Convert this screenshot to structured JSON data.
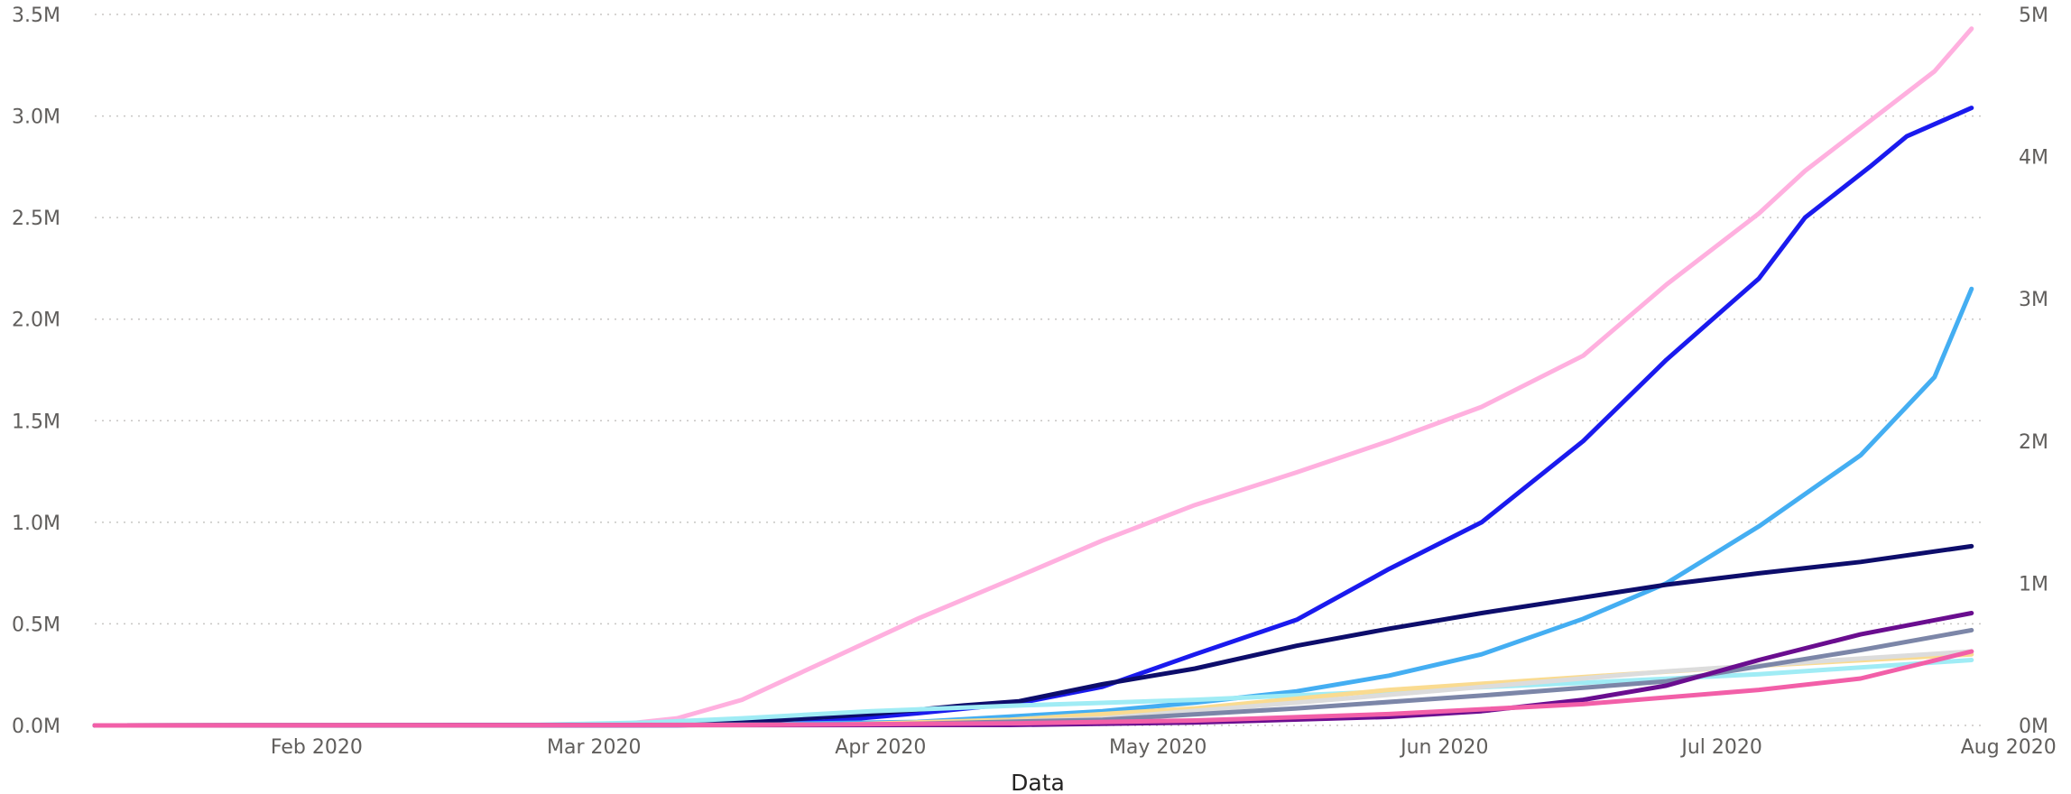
{
  "chart_data": {
    "type": "line",
    "xlabel": "Data",
    "grid": true,
    "x_tick_labels": [
      "Feb 2020",
      "Mar 2020",
      "Apr 2020",
      "May 2020",
      "Jun 2020",
      "Jul 2020",
      "Aug 2020"
    ],
    "y_left_ticks": [
      "0.0M",
      "0.5M",
      "1.0M",
      "1.5M",
      "2.0M",
      "2.5M",
      "3.0M",
      "3.5M"
    ],
    "y_left_range": [
      0,
      3500000
    ],
    "y_right_ticks": [
      "0M",
      "1M",
      "2M",
      "3M",
      "4M",
      "5M"
    ],
    "y_right_range": [
      0,
      5000000
    ],
    "x_range": [
      "2020-01-22",
      "2020-08-13"
    ],
    "series": [
      {
        "axis": "right",
        "color": "#ffb0df",
        "points": [
          [
            "2020-01-22",
            0
          ],
          [
            "2020-03-10",
            1000
          ],
          [
            "2020-03-20",
            15000
          ],
          [
            "2020-03-25",
            50000
          ],
          [
            "2020-04-01",
            180000
          ],
          [
            "2020-04-10",
            450000
          ],
          [
            "2020-04-20",
            750000
          ],
          [
            "2020-05-01",
            1050000
          ],
          [
            "2020-05-10",
            1300000
          ],
          [
            "2020-05-20",
            1550000
          ],
          [
            "2020-05-31",
            1780000
          ],
          [
            "2020-06-10",
            2000000
          ],
          [
            "2020-06-20",
            2240000
          ],
          [
            "2020-07-01",
            2600000
          ],
          [
            "2020-07-10",
            3100000
          ],
          [
            "2020-07-20",
            3600000
          ],
          [
            "2020-07-25",
            3900000
          ],
          [
            "2020-08-01",
            4250000
          ],
          [
            "2020-08-08",
            4600000
          ],
          [
            "2020-08-12",
            4900000
          ]
        ]
      },
      {
        "axis": "left",
        "color": "#1a1aee",
        "points": [
          [
            "2020-01-22",
            0
          ],
          [
            "2020-03-25",
            1000
          ],
          [
            "2020-04-10",
            20000
          ],
          [
            "2020-04-20",
            60000
          ],
          [
            "2020-05-01",
            110000
          ],
          [
            "2020-05-10",
            190000
          ],
          [
            "2020-05-20",
            350000
          ],
          [
            "2020-05-31",
            520000
          ],
          [
            "2020-06-10",
            770000
          ],
          [
            "2020-06-20",
            1000000
          ],
          [
            "2020-07-01",
            1400000
          ],
          [
            "2020-07-10",
            1800000
          ],
          [
            "2020-07-20",
            2200000
          ],
          [
            "2020-07-25",
            2500000
          ],
          [
            "2020-08-01",
            2750000
          ],
          [
            "2020-08-05",
            2900000
          ],
          [
            "2020-08-12",
            3040000
          ]
        ]
      },
      {
        "axis": "right",
        "color": "#44aef2",
        "points": [
          [
            "2020-01-22",
            0
          ],
          [
            "2020-03-25",
            1000
          ],
          [
            "2020-04-20",
            25000
          ],
          [
            "2020-05-10",
            100000
          ],
          [
            "2020-05-20",
            160000
          ],
          [
            "2020-05-31",
            240000
          ],
          [
            "2020-06-10",
            350000
          ],
          [
            "2020-06-20",
            500000
          ],
          [
            "2020-07-01",
            750000
          ],
          [
            "2020-07-10",
            1000000
          ],
          [
            "2020-07-20",
            1400000
          ],
          [
            "2020-07-31",
            1900000
          ],
          [
            "2020-08-08",
            2450000
          ],
          [
            "2020-08-12",
            3070000
          ]
        ]
      },
      {
        "axis": "right",
        "color": "#0d0d6b",
        "points": [
          [
            "2020-01-22",
            0
          ],
          [
            "2020-03-20",
            3000
          ],
          [
            "2020-04-01",
            20000
          ],
          [
            "2020-04-15",
            80000
          ],
          [
            "2020-04-25",
            140000
          ],
          [
            "2020-05-01",
            170000
          ],
          [
            "2020-05-10",
            290000
          ],
          [
            "2020-05-20",
            400000
          ],
          [
            "2020-05-31",
            560000
          ],
          [
            "2020-06-10",
            680000
          ],
          [
            "2020-06-20",
            790000
          ],
          [
            "2020-07-01",
            900000
          ],
          [
            "2020-07-10",
            990000
          ],
          [
            "2020-07-20",
            1070000
          ],
          [
            "2020-07-31",
            1150000
          ],
          [
            "2020-08-12",
            1260000
          ]
        ]
      },
      {
        "axis": "right",
        "color": "#a0ecf5",
        "points": [
          [
            "2020-01-22",
            0
          ],
          [
            "2020-03-10",
            5000
          ],
          [
            "2020-03-22",
            20000
          ],
          [
            "2020-04-01",
            50000
          ],
          [
            "2020-04-15",
            100000
          ],
          [
            "2020-05-01",
            140000
          ],
          [
            "2020-05-20",
            180000
          ],
          [
            "2020-06-10",
            240000
          ],
          [
            "2020-07-01",
            300000
          ],
          [
            "2020-07-20",
            360000
          ],
          [
            "2020-08-12",
            460000
          ]
        ]
      },
      {
        "axis": "right",
        "color": "#fadb90",
        "points": [
          [
            "2020-01-22",
            0
          ],
          [
            "2020-04-10",
            3000
          ],
          [
            "2020-04-30",
            40000
          ],
          [
            "2020-05-20",
            120000
          ],
          [
            "2020-06-10",
            250000
          ],
          [
            "2020-07-01",
            340000
          ],
          [
            "2020-07-20",
            420000
          ],
          [
            "2020-08-12",
            500000
          ]
        ]
      },
      {
        "axis": "right",
        "color": "#dcdcdc",
        "points": [
          [
            "2020-01-22",
            0
          ],
          [
            "2020-04-20",
            5000
          ],
          [
            "2020-05-10",
            50000
          ],
          [
            "2020-05-31",
            160000
          ],
          [
            "2020-06-20",
            270000
          ],
          [
            "2020-07-10",
            380000
          ],
          [
            "2020-07-31",
            470000
          ],
          [
            "2020-08-12",
            520000
          ]
        ]
      },
      {
        "axis": "right",
        "color": "#7c86a8",
        "points": [
          [
            "2020-01-22",
            0
          ],
          [
            "2020-04-15",
            5000
          ],
          [
            "2020-05-10",
            40000
          ],
          [
            "2020-05-31",
            120000
          ],
          [
            "2020-06-20",
            210000
          ],
          [
            "2020-07-10",
            310000
          ],
          [
            "2020-07-31",
            530000
          ],
          [
            "2020-08-12",
            670000
          ]
        ]
      },
      {
        "axis": "right",
        "color": "#6a0d8f",
        "points": [
          [
            "2020-01-22",
            0
          ],
          [
            "2020-04-30",
            3000
          ],
          [
            "2020-05-20",
            20000
          ],
          [
            "2020-06-10",
            60000
          ],
          [
            "2020-06-20",
            100000
          ],
          [
            "2020-07-01",
            180000
          ],
          [
            "2020-07-10",
            280000
          ],
          [
            "2020-07-20",
            460000
          ],
          [
            "2020-07-31",
            640000
          ],
          [
            "2020-08-12",
            790000
          ]
        ]
      },
      {
        "axis": "right",
        "color": "#f25fa8",
        "points": [
          [
            "2020-01-22",
            0
          ],
          [
            "2020-04-01",
            3000
          ],
          [
            "2020-05-01",
            15000
          ],
          [
            "2020-05-20",
            35000
          ],
          [
            "2020-06-10",
            80000
          ],
          [
            "2020-07-01",
            150000
          ],
          [
            "2020-07-20",
            250000
          ],
          [
            "2020-07-31",
            330000
          ],
          [
            "2020-08-12",
            520000
          ]
        ]
      }
    ]
  }
}
